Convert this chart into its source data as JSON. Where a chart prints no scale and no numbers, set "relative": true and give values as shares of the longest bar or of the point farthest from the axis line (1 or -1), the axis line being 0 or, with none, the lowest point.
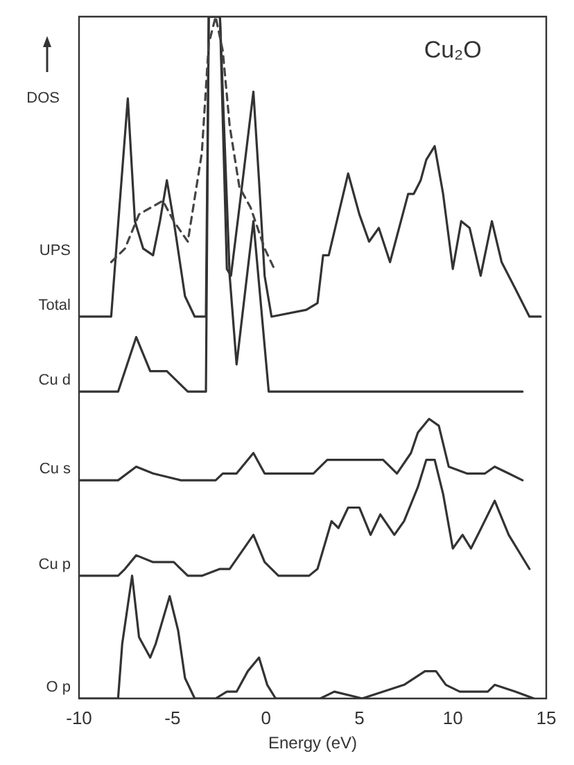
{
  "chart_data": {
    "type": "line",
    "title": "Cu₂O",
    "xlabel": "Energy (eV)",
    "ylabel": "DOS",
    "relative": true,
    "xlim": [
      -10,
      15
    ],
    "xticks": [
      -10,
      -5,
      0,
      5,
      10,
      15
    ],
    "tick_labels": "x",
    "grid": false,
    "line_style": "solid",
    "series": [
      {
        "name": "UPS",
        "color": "#444444",
        "line_style": "dashed",
        "x": [
          -8.28,
          -7.54,
          -6.79,
          -5.52,
          -4.93,
          -4.18,
          -3.43,
          -3.06,
          -2.69,
          -2.31,
          -1.94,
          -1.42,
          -0.82,
          -0.07,
          0.45
        ],
        "values": [
          0.64,
          0.66,
          0.71,
          0.73,
          0.7,
          0.67,
          0.8,
          0.96,
          1.0,
          0.95,
          0.84,
          0.75,
          0.72,
          0.66,
          0.63
        ]
      },
      {
        "name": "Total",
        "color": "#333333",
        "x": [
          -9.93,
          -8.28,
          -7.84,
          -7.39,
          -7.01,
          -6.57,
          -6.04,
          -5.67,
          -5.3,
          -4.93,
          -4.33,
          -3.81,
          -3.21,
          -3.06,
          -2.46,
          -2.09,
          -1.87,
          -1.42,
          -0.67,
          -0.37,
          -0.07,
          0.3,
          2.16,
          2.76,
          3.06,
          3.36,
          4.4,
          5.0,
          5.52,
          6.04,
          6.64,
          7.61,
          7.91,
          8.28,
          8.58,
          9.03,
          9.48,
          10.0,
          10.45,
          10.9,
          11.49,
          12.09,
          12.61,
          13.36,
          14.1,
          14.7
        ],
        "values": [
          0.56,
          0.56,
          0.72,
          0.88,
          0.7,
          0.66,
          0.65,
          0.7,
          0.76,
          0.7,
          0.59,
          0.56,
          0.56,
          1.0,
          1.0,
          0.63,
          0.62,
          0.72,
          0.89,
          0.76,
          0.62,
          0.56,
          0.57,
          0.58,
          0.65,
          0.65,
          0.77,
          0.71,
          0.67,
          0.69,
          0.64,
          0.74,
          0.74,
          0.76,
          0.79,
          0.81,
          0.74,
          0.63,
          0.7,
          0.69,
          0.62,
          0.7,
          0.64,
          0.6,
          0.56,
          0.56
        ]
      },
      {
        "name": "Cu d",
        "color": "#333333",
        "x": [
          -9.93,
          -7.91,
          -6.94,
          -6.19,
          -5.3,
          -4.18,
          -3.21,
          -3.06,
          -2.46,
          -1.94,
          -1.57,
          -0.67,
          0.15,
          13.73
        ],
        "values": [
          0.45,
          0.45,
          0.53,
          0.48,
          0.48,
          0.45,
          0.45,
          1.0,
          1.0,
          0.62,
          0.49,
          0.7,
          0.45,
          0.45
        ]
      },
      {
        "name": "Cu s",
        "color": "#333333",
        "x": [
          -9.93,
          -7.91,
          -6.94,
          -6.04,
          -4.55,
          -2.69,
          -2.31,
          -1.57,
          -0.67,
          -0.07,
          2.54,
          3.28,
          4.03,
          4.78,
          5.52,
          6.27,
          7.01,
          7.76,
          8.13,
          8.73,
          9.25,
          9.78,
          10.75,
          11.72,
          12.24,
          12.99,
          13.73
        ],
        "values": [
          0.32,
          0.32,
          0.34,
          0.33,
          0.32,
          0.32,
          0.33,
          0.33,
          0.36,
          0.33,
          0.33,
          0.35,
          0.35,
          0.35,
          0.35,
          0.35,
          0.33,
          0.36,
          0.39,
          0.41,
          0.4,
          0.34,
          0.33,
          0.33,
          0.34,
          0.33,
          0.32
        ]
      },
      {
        "name": "Cu p",
        "color": "#333333",
        "x": [
          -9.93,
          -7.91,
          -7.54,
          -6.94,
          -6.04,
          -4.93,
          -4.18,
          -3.43,
          -2.46,
          -1.94,
          -0.67,
          -0.07,
          0.67,
          2.31,
          2.76,
          3.51,
          3.88,
          4.4,
          5.0,
          5.6,
          6.12,
          6.87,
          7.39,
          8.13,
          8.58,
          9.03,
          9.48,
          10.0,
          10.52,
          10.97,
          11.34,
          12.24,
          12.99,
          14.1
        ],
        "values": [
          0.18,
          0.18,
          0.19,
          0.21,
          0.2,
          0.2,
          0.18,
          0.18,
          0.19,
          0.19,
          0.24,
          0.2,
          0.18,
          0.18,
          0.19,
          0.26,
          0.25,
          0.28,
          0.28,
          0.24,
          0.27,
          0.24,
          0.26,
          0.31,
          0.35,
          0.35,
          0.3,
          0.22,
          0.24,
          0.22,
          0.24,
          0.29,
          0.24,
          0.19
        ]
      },
      {
        "name": "O p",
        "color": "#333333",
        "x": [
          -9.93,
          -7.91,
          -7.69,
          -7.16,
          -6.79,
          -6.19,
          -5.9,
          -5.15,
          -4.7,
          -4.33,
          -3.81,
          -2.69,
          -2.09,
          -1.57,
          -0.97,
          -0.37,
          0.07,
          0.52,
          2.91,
          3.66,
          5.15,
          7.39,
          8.51,
          9.1,
          9.63,
          10.37,
          11.12,
          11.87,
          12.24,
          13.36,
          14.33
        ],
        "values": [
          0,
          0,
          0.08,
          0.18,
          0.09,
          0.06,
          0.08,
          0.15,
          0.1,
          0.03,
          0,
          0,
          0.01,
          0.01,
          0.04,
          0.06,
          0.02,
          0,
          0,
          0.01,
          0,
          0.02,
          0.04,
          0.04,
          0.02,
          0.01,
          0.01,
          0.01,
          0.02,
          0.01,
          0
        ]
      }
    ]
  }
}
